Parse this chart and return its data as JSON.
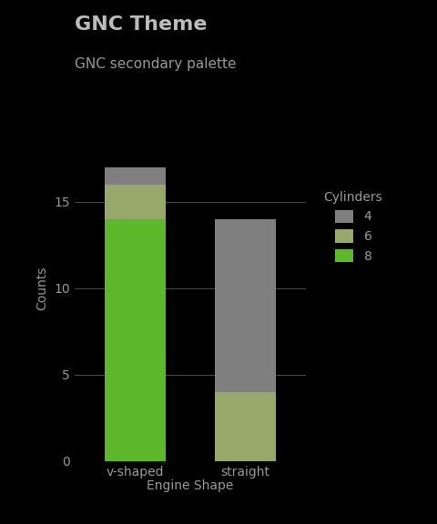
{
  "title": "GNC Theme",
  "subtitle": "GNC secondary palette",
  "xlabel": "Engine Shape",
  "ylabel": "Counts",
  "categories": [
    "v-shaped",
    "straight"
  ],
  "values": {
    "v-shaped": {
      "8": 14,
      "6": 2,
      "4": 1
    },
    "straight": {
      "8": 0,
      "6": 4,
      "4": 10
    }
  },
  "colors": {
    "4": "#7f7f7f",
    "6": "#96a96b",
    "8": "#5cb82a"
  },
  "background_color": "#000000",
  "text_color": "#999999",
  "title_color": "#bbbbbb",
  "grid_color": "#555555",
  "ylim": [
    0,
    20
  ],
  "yticks": [
    0,
    5,
    10,
    15
  ],
  "legend_title": "Cylinders",
  "bar_width": 0.55,
  "title_fontsize": 16,
  "subtitle_fontsize": 11,
  "label_fontsize": 10,
  "tick_fontsize": 10
}
